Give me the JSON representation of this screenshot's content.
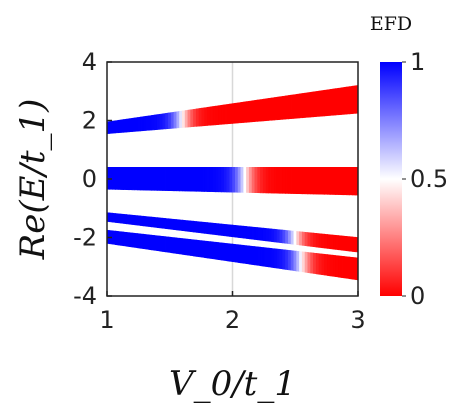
{
  "chart_data": {
    "type": "scatter",
    "title": "",
    "xlabel": "V_0/t_1",
    "ylabel": "Re(E/t_1)",
    "xlim": [
      1,
      3
    ],
    "ylim": [
      -4,
      4
    ],
    "x_ticks": [
      "1",
      "2",
      "3"
    ],
    "y_ticks": [
      "4",
      "2",
      "0",
      "-2",
      "-4"
    ],
    "vertical_reference_line_x": 2,
    "colorbar": {
      "title": "EFD",
      "range": [
        0,
        1
      ],
      "tick_labels": [
        "1",
        "0.5",
        "0"
      ],
      "low_color": "#ff0000",
      "mid_color": "#ffffff",
      "high_color": "#0000ff"
    },
    "bands": [
      {
        "x": [
          1,
          3
        ],
        "y_low": [
          1.55,
          2.25
        ],
        "y_high": [
          1.95,
          3.2
        ],
        "efd_transition_x": 1.6
      },
      {
        "x": [
          1,
          3
        ],
        "y_low": [
          -0.35,
          -0.55
        ],
        "y_high": [
          0.4,
          0.4
        ],
        "efd_transition_x": 2.1
      },
      {
        "x": [
          1,
          3
        ],
        "y_low": [
          -1.45,
          -2.5
        ],
        "y_high": [
          -1.15,
          -2.0
        ],
        "efd_transition_x": 2.5
      },
      {
        "x": [
          1,
          3
        ],
        "y_low": [
          -2.2,
          -3.45
        ],
        "y_high": [
          -1.75,
          -2.7
        ],
        "efd_transition_x": 2.55
      }
    ]
  }
}
